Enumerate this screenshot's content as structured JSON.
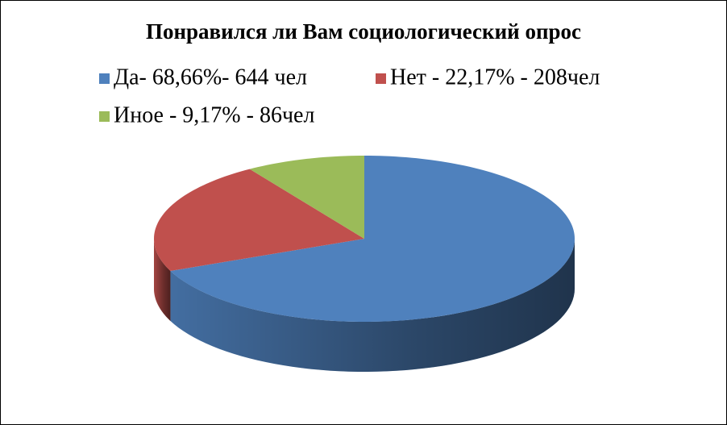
{
  "chart_data": {
    "type": "pie",
    "title": "Понравился ли Вам социологический опрос",
    "categories": [
      "Да- 68,66%- 644 чел",
      "Нет - 22,17% - 208чел",
      "Иное - 9,17% - 86чел"
    ],
    "values": [
      68.66,
      22.17,
      9.17
    ],
    "colors": [
      "#4f81bd",
      "#c0504d",
      "#9bbb59"
    ],
    "legend": "top"
  }
}
